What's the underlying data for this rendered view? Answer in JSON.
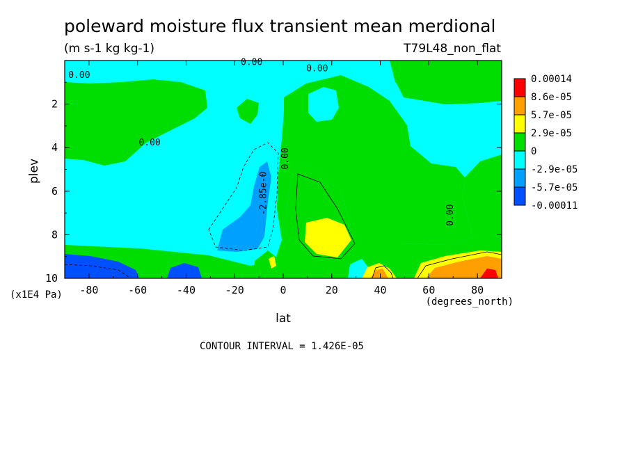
{
  "header": {
    "title": "poleward moisture flux transient mean merdional",
    "units": "(m s-1 kg kg-1)",
    "dataset": "T79L48_non_flat"
  },
  "footer": {
    "contour_interval": "CONTOUR INTERVAL = 1.426E-05"
  },
  "chart_data": {
    "type": "heatmap",
    "subtype": "filled-contour",
    "title": "poleward moisture flux transient mean merdional",
    "xlabel": "lat",
    "x_units": "(degrees_north)",
    "ylabel": "plev",
    "y_units": "(x1E4 Pa)",
    "xlim": [
      -90,
      90
    ],
    "ylim": [
      10,
      0
    ],
    "x_ticks": [
      -80,
      -60,
      -40,
      -20,
      0,
      20,
      40,
      60,
      80
    ],
    "x_tick_labels": [
      "-80",
      "-60",
      "-40",
      "-20",
      "0",
      "20",
      "40",
      "60",
      "80"
    ],
    "y_ticks": [
      2,
      4,
      6,
      8,
      10
    ],
    "y_tick_labels": [
      "2",
      "4",
      "6",
      "8",
      "10"
    ],
    "contour_labels": [
      {
        "text": "0.00",
        "lat": -84,
        "plev": 0.8
      },
      {
        "text": "0.00",
        "lat": -55,
        "plev": 3.9
      },
      {
        "text": "0.00",
        "lat": -13,
        "plev": 0.2
      },
      {
        "text": "0.00",
        "lat": 14,
        "plev": 0.5
      },
      {
        "text": "-2.85e-0",
        "lat": -7,
        "plev": 6.1,
        "rotate": -90
      },
      {
        "text": "0.00",
        "lat": 2,
        "plev": 4.5,
        "rotate": -90
      },
      {
        "text": "0.00",
        "lat": 70,
        "plev": 7.1,
        "rotate": -90
      }
    ],
    "colorbar": {
      "levels": [
        "0.00014",
        "8.6e-05",
        "5.7e-05",
        "2.9e-05",
        "0",
        "-2.9e-05",
        "-5.7e-05",
        "-0.00011"
      ],
      "colors": [
        "#ff0000",
        "#ffa000",
        "#ffff00",
        "#00dd00",
        "#00ffff",
        "#00a0ff",
        "#0050ff"
      ]
    },
    "fill_colors": {
      "green": "#00dd00",
      "cyan": "#00ffff",
      "light_blue": "#00a0ff",
      "blue": "#0050ff",
      "yellow": "#ffff00",
      "orange": "#ffa000",
      "red": "#ff0000"
    },
    "grid": false
  }
}
